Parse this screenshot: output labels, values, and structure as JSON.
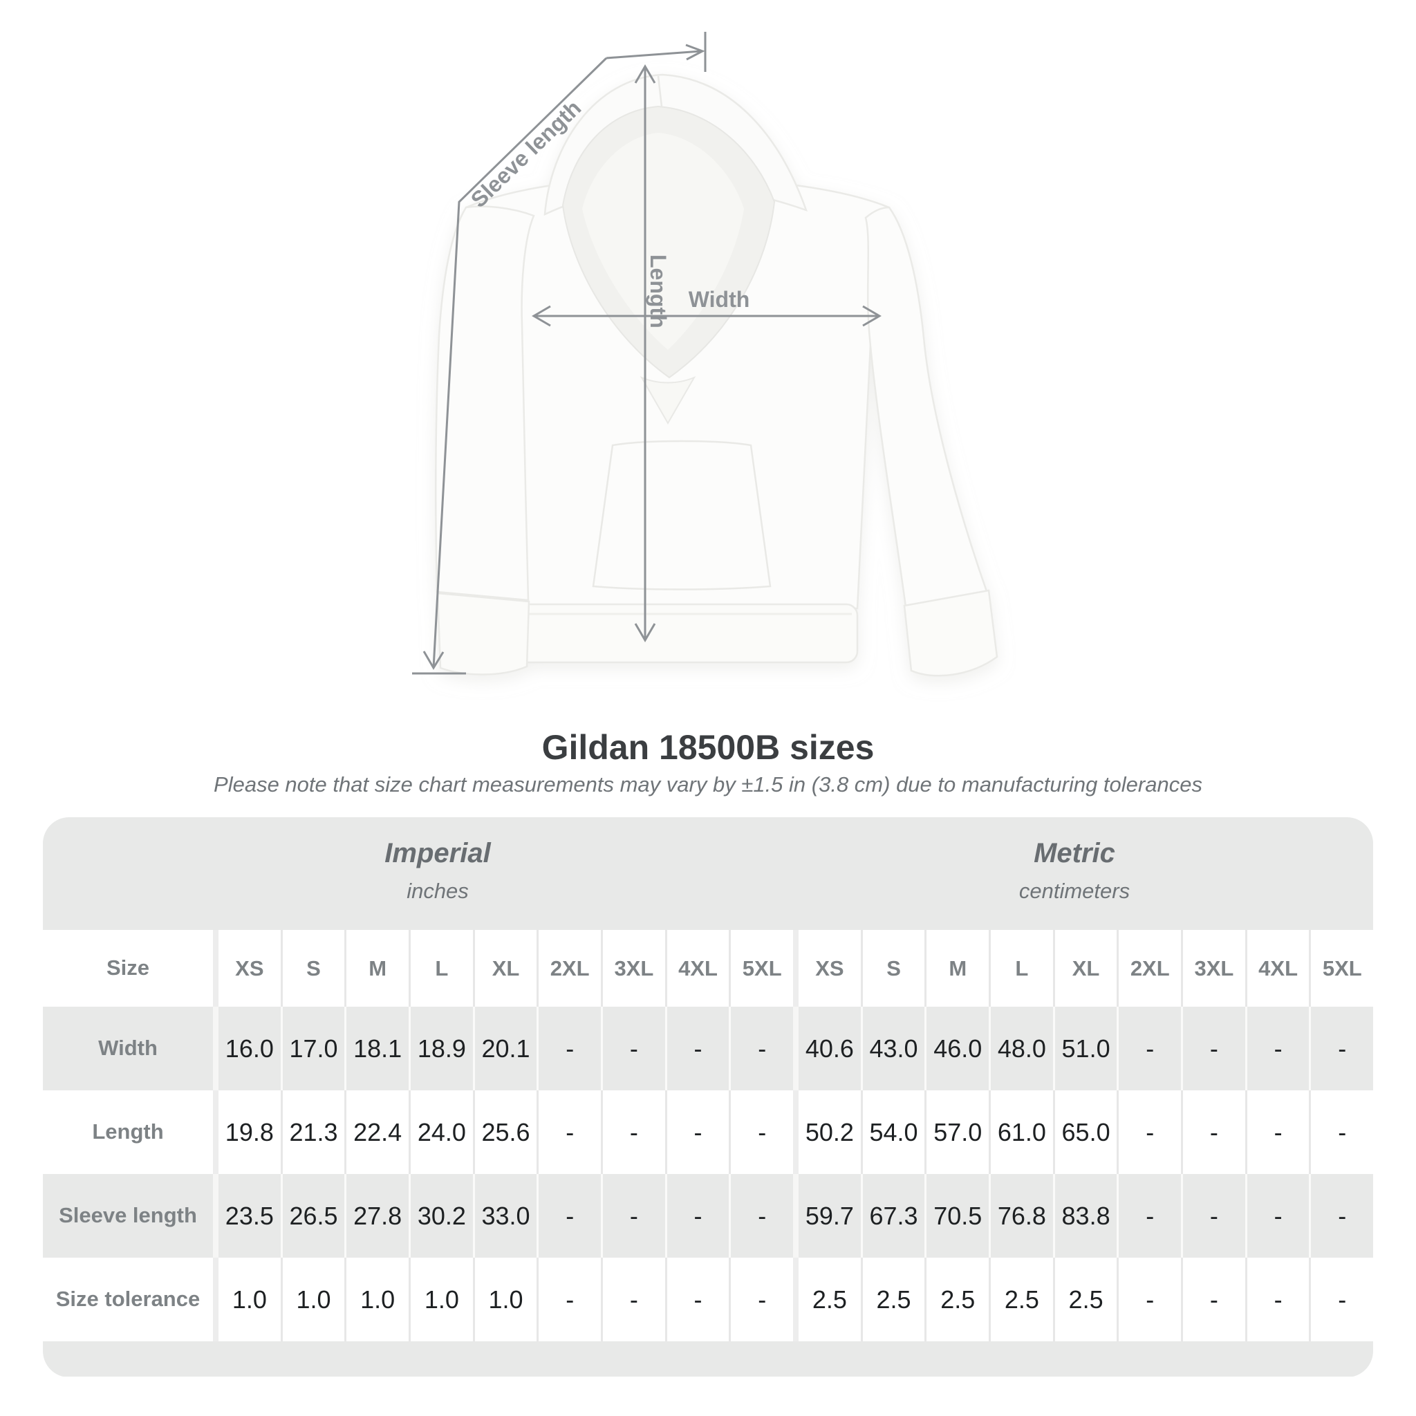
{
  "diagram": {
    "labels": {
      "sleeve_length": "Sleeve length",
      "length": "Length",
      "width": "Width"
    }
  },
  "header": {
    "title": "Gildan 18500B sizes",
    "subtitle": "Please note that size chart measurements may vary by ±1.5 in (3.8 cm) due to manufacturing tolerances"
  },
  "table": {
    "size_header_label": "Size",
    "sizes": [
      "XS",
      "S",
      "M",
      "L",
      "XL",
      "2XL",
      "3XL",
      "4XL",
      "5XL"
    ],
    "null_display": "-"
  },
  "chart_data": {
    "type": "table",
    "title": "Gildan 18500B sizes",
    "subtitle": "Please note that size chart measurements may vary by ±1.5 in (3.8 cm) due to manufacturing tolerances",
    "column_groups": [
      {
        "label": "Imperial",
        "unit": "inches",
        "columns": [
          "XS",
          "S",
          "M",
          "L",
          "XL",
          "2XL",
          "3XL",
          "4XL",
          "5XL"
        ]
      },
      {
        "label": "Metric",
        "unit": "centimeters",
        "columns": [
          "XS",
          "S",
          "M",
          "L",
          "XL",
          "2XL",
          "3XL",
          "4XL",
          "5XL"
        ]
      }
    ],
    "rows": [
      {
        "label": "Width",
        "imperial": [
          16.0,
          17.0,
          18.1,
          18.9,
          20.1,
          null,
          null,
          null,
          null
        ],
        "metric": [
          40.6,
          43.0,
          46.0,
          48.0,
          51.0,
          null,
          null,
          null,
          null
        ]
      },
      {
        "label": "Length",
        "imperial": [
          19.8,
          21.3,
          22.4,
          24.0,
          25.6,
          null,
          null,
          null,
          null
        ],
        "metric": [
          50.2,
          54.0,
          57.0,
          61.0,
          65.0,
          null,
          null,
          null,
          null
        ]
      },
      {
        "label": "Sleeve length",
        "imperial": [
          23.5,
          26.5,
          27.8,
          30.2,
          33.0,
          null,
          null,
          null,
          null
        ],
        "metric": [
          59.7,
          67.3,
          70.5,
          76.8,
          83.8,
          null,
          null,
          null,
          null
        ]
      },
      {
        "label": "Size tolerance",
        "imperial": [
          1.0,
          1.0,
          1.0,
          1.0,
          1.0,
          null,
          null,
          null,
          null
        ],
        "metric": [
          2.5,
          2.5,
          2.5,
          2.5,
          2.5,
          null,
          null,
          null,
          null
        ]
      }
    ]
  },
  "colors": {
    "annotation_gray": "#8e9296",
    "table_band_gray": "#e8e9e8",
    "value_text": "#1d2022",
    "label_text": "#7d8285",
    "section_text": "#686d71",
    "title_text": "#3b3e41",
    "subtitle_text": "#6f7478"
  }
}
